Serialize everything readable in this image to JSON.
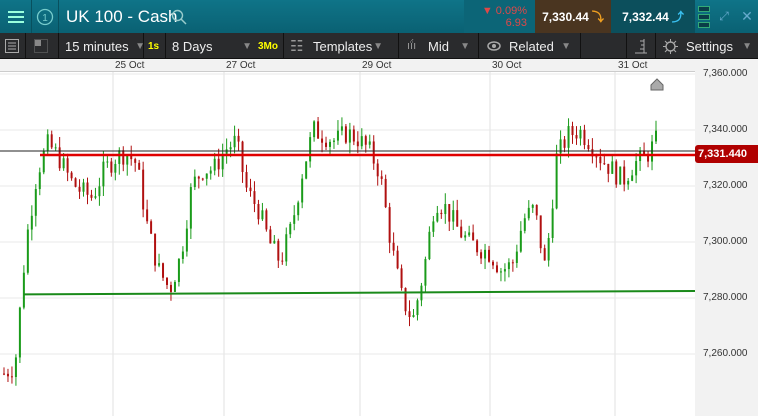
{
  "header": {
    "title": "UK 100 - Cash",
    "change_pct": "0.09%",
    "change_abs": "6.93",
    "bid": "7,330.44",
    "offer": "7,332.44",
    "icons": [
      "menu-icon",
      "info-circle-icon",
      "search-icon",
      "down-triangle-icon",
      "arrow-down-icon",
      "arrow-up-icon",
      "layout-icon",
      "expand-icon",
      "close-icon"
    ]
  },
  "toolbar": {
    "interval": "15 minutes",
    "interval_badge": "1s",
    "range": "8 Days",
    "range_badge": "3Mo",
    "templates": "Templates",
    "price_type": "Mid",
    "related": "Related",
    "settings": "Settings"
  },
  "colors": {
    "header": "#0f7488",
    "up": "#1a9b1a",
    "down": "#b01010",
    "price_line": "#e00000",
    "support_line": "#1a8a1a",
    "bid_bg": "#4a3520",
    "offer_bg": "#0c4f5c"
  },
  "chart_data": {
    "type": "candlestick",
    "x_tick_labels": [
      "25 Oct",
      "27 Oct",
      "29 Oct",
      "30 Oct",
      "31 Oct"
    ],
    "y_tick_labels": [
      "7,360.000",
      "7,340.000",
      "7,320.000",
      "7,300.000",
      "7,280.000",
      "7,260.000"
    ],
    "y_ticks": [
      7360,
      7340,
      7320,
      7300,
      7280,
      7260
    ],
    "ylim": [
      7237,
      7363
    ],
    "current_price": 7331.44,
    "current_price_label": "7,331.440",
    "support_line": [
      7281.3,
      7282.5
    ],
    "close_path": [
      7253,
      7256,
      7300,
      7325,
      7335,
      7330,
      7322,
      7318,
      7316,
      7325,
      7330,
      7332,
      7328,
      7305,
      7290,
      7283,
      7295,
      7320,
      7326,
      7326,
      7333,
      7336,
      7318,
      7312,
      7300,
      7293,
      7305,
      7325,
      7340,
      7338,
      7336,
      7339,
      7337,
      7333,
      7325,
      7300,
      7280,
      7272,
      7290,
      7315,
      7312,
      7305,
      7300,
      7298,
      7296,
      7290,
      7292,
      7308,
      7312,
      7290,
      7330,
      7338,
      7340,
      7336,
      7330,
      7326,
      7322,
      7328,
      7330,
      7336
    ]
  }
}
